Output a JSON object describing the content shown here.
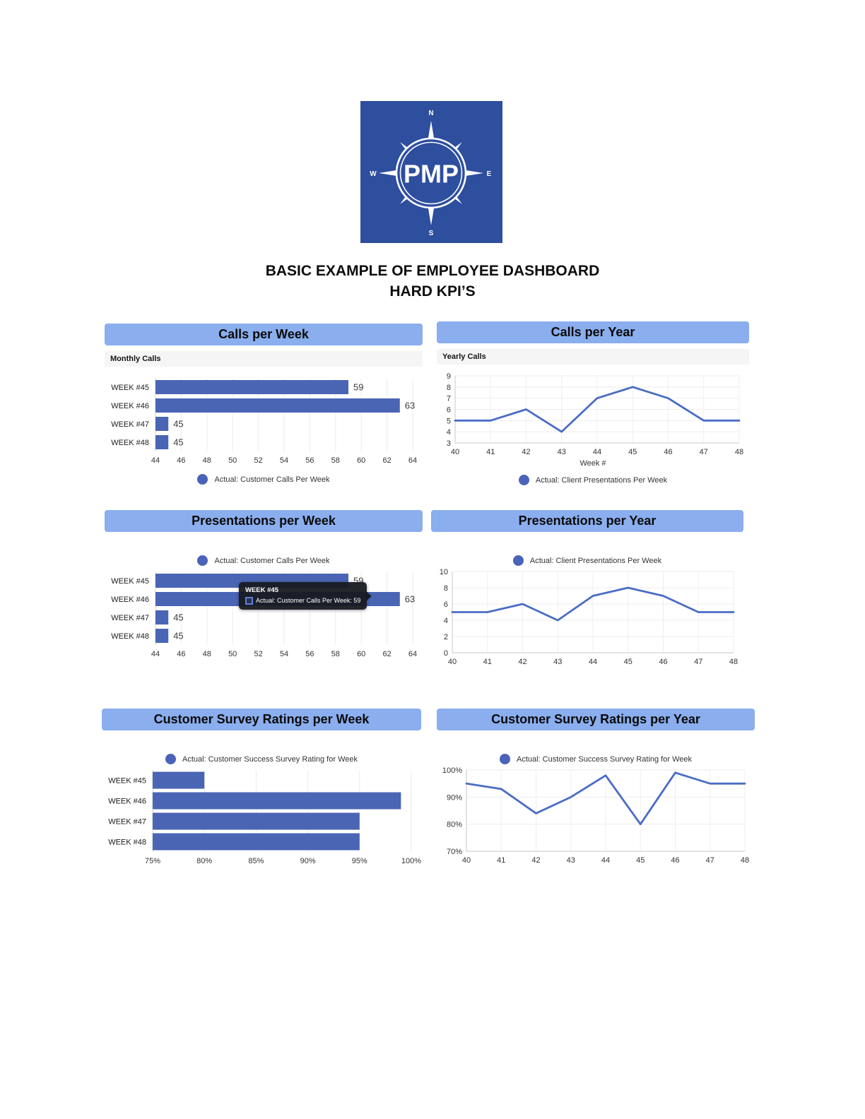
{
  "page": {
    "title_line1": "BASIC EXAMPLE OF EMPLOYEE DASHBOARD",
    "title_line2": "HARD KPI’S"
  },
  "logo": {
    "label": "PMP",
    "north": "N",
    "south": "S",
    "east": "E",
    "west": "W"
  },
  "colors": {
    "header_bg": "#8aaeee",
    "subheader_bg": "#f5f5f5",
    "bar": "#4a65b4",
    "line": "#4a6cc4",
    "legend_dot": "#4a63b8",
    "logo_bg": "#2e4e9e"
  },
  "chart_data": [
    {
      "id": "calls-per-week",
      "type": "bar",
      "orientation": "horizontal",
      "title": "Calls per Week",
      "subheader": "Monthly Calls",
      "categories": [
        "WEEK #45",
        "WEEK #46",
        "WEEK #47",
        "WEEK #48"
      ],
      "values": [
        59,
        63,
        45,
        45
      ],
      "data_labels": [
        "59",
        "63",
        "45",
        "45"
      ],
      "xlim": [
        44,
        64
      ],
      "xticks": [
        44,
        46,
        48,
        50,
        52,
        54,
        56,
        58,
        60,
        62,
        64
      ],
      "grid": true,
      "legend": "Actual: Customer Calls Per Week",
      "legend_position": "bottom"
    },
    {
      "id": "calls-per-year",
      "type": "line",
      "title": "Calls per Year",
      "subheader": "Yearly Calls",
      "x": [
        40,
        41,
        42,
        43,
        44,
        45,
        46,
        47,
        48
      ],
      "values": [
        5,
        5,
        6,
        4,
        7,
        8,
        7,
        5,
        5
      ],
      "ylim": [
        3,
        9
      ],
      "yticks": [
        3,
        4,
        5,
        6,
        7,
        8,
        9
      ],
      "xticks": [
        40,
        41,
        42,
        43,
        44,
        45,
        46,
        47,
        48
      ],
      "xlabel": "Week #",
      "grid": true,
      "legend": "Actual: Client Presentations Per Week",
      "legend_position": "bottom"
    },
    {
      "id": "presentations-per-week",
      "type": "bar",
      "orientation": "horizontal",
      "title": "Presentations per Week",
      "categories": [
        "WEEK #45",
        "WEEK #46",
        "WEEK #47",
        "WEEK #48"
      ],
      "values": [
        59,
        63,
        45,
        45
      ],
      "data_labels": [
        "59",
        "63",
        "45",
        "45"
      ],
      "xlim": [
        44,
        64
      ],
      "xticks": [
        44,
        46,
        48,
        50,
        52,
        54,
        56,
        58,
        60,
        62,
        64
      ],
      "grid": true,
      "legend": "Actual: Customer Calls Per Week",
      "legend_position": "top",
      "tooltip": {
        "title": "WEEK #45",
        "text": "Actual: Customer Calls Per Week: 59"
      }
    },
    {
      "id": "presentations-per-year",
      "type": "line",
      "title": "Presentations per Year",
      "x": [
        40,
        41,
        42,
        43,
        44,
        45,
        46,
        47,
        48
      ],
      "values": [
        5,
        5,
        6,
        4,
        7,
        8,
        7,
        5,
        5
      ],
      "ylim": [
        0,
        10
      ],
      "yticks": [
        0,
        2,
        4,
        6,
        8,
        10
      ],
      "xticks": [
        40,
        41,
        42,
        43,
        44,
        45,
        46,
        47,
        48
      ],
      "grid": true,
      "legend": "Actual: Client Presentations Per Week",
      "legend_position": "top"
    },
    {
      "id": "customer-survey-ratings-per-week",
      "type": "bar",
      "orientation": "horizontal",
      "title": "Customer Survey Ratings per Week",
      "categories": [
        "WEEK #45",
        "WEEK #46",
        "WEEK #47",
        "WEEK #48"
      ],
      "values": [
        80,
        99,
        95,
        95
      ],
      "xlim": [
        75,
        100
      ],
      "xticks": [
        75,
        80,
        85,
        90,
        95,
        100
      ],
      "xtick_labels": [
        "75%",
        "80%",
        "85%",
        "90%",
        "95%",
        "100%"
      ],
      "grid": true,
      "legend": "Actual: Customer Success Survey Rating for Week",
      "legend_position": "top"
    },
    {
      "id": "customer-survey-ratings-per-year",
      "type": "line",
      "title": "Customer Survey Ratings per Year",
      "x": [
        40,
        41,
        42,
        43,
        44,
        45,
        46,
        47,
        48
      ],
      "values": [
        95,
        93,
        84,
        90,
        98,
        80,
        99,
        95,
        95
      ],
      "ylim": [
        70,
        100
      ],
      "yticks": [
        70,
        80,
        90,
        100
      ],
      "ytick_labels": [
        "70%",
        "80%",
        "90%",
        "100%"
      ],
      "xticks": [
        40,
        41,
        42,
        43,
        44,
        45,
        46,
        47,
        48
      ],
      "grid": true,
      "legend": "Actual: Customer Success Survey Rating for Week",
      "legend_position": "top"
    }
  ]
}
